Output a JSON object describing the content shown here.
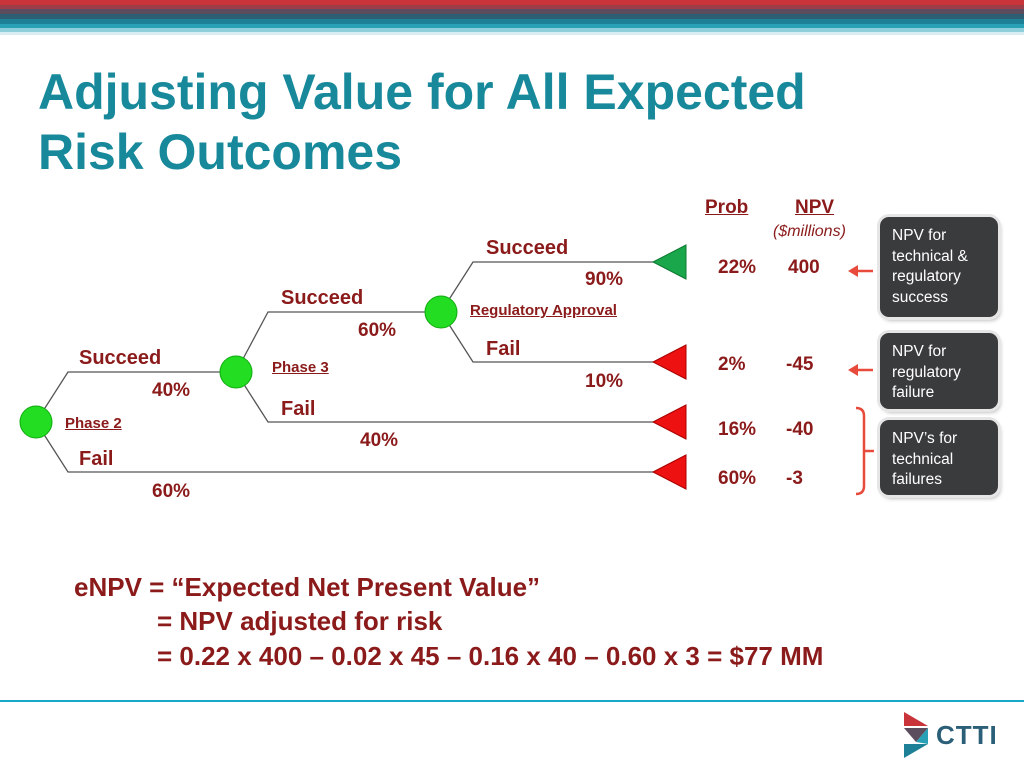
{
  "slide": {
    "title_line1": "Adjusting Value for All Expected",
    "title_line2": "Risk Outcomes"
  },
  "colors": {
    "title": "#17899b",
    "text": "#8b1a1a",
    "node": "#22dd22",
    "success_terminal": "#1aa64a",
    "failure_terminal": "#ee1111",
    "callout_bg": "#3a3b3d",
    "arrow": "#e84a3c"
  },
  "tree": {
    "phase2_label": "Phase 2",
    "phase3_label": "Phase 3",
    "regulatory_label": "Regulatory Approval",
    "p2_succeed": "Succeed",
    "p2_succeed_pct": "40%",
    "p2_fail": "Fail",
    "p2_fail_pct": "60%",
    "p3_succeed": "Succeed",
    "p3_succeed_pct": "60%",
    "p3_fail": "Fail",
    "p3_fail_pct": "40%",
    "reg_succeed": "Succeed",
    "reg_succeed_pct": "90%",
    "reg_fail": "Fail",
    "reg_fail_pct": "10%"
  },
  "table": {
    "prob_header": "Prob",
    "npv_header": "NPV",
    "npv_unit": "($millions)",
    "rows": [
      {
        "prob": "22%",
        "npv": "400"
      },
      {
        "prob": "2%",
        "npv": "-45"
      },
      {
        "prob": "16%",
        "npv": "-40"
      },
      {
        "prob": "60%",
        "npv": "-3"
      }
    ]
  },
  "callouts": [
    {
      "lines": [
        "NPV for",
        "technical &",
        "regulatory",
        "success"
      ]
    },
    {
      "lines": [
        "NPV for",
        "regulatory",
        "failure"
      ]
    },
    {
      "lines": [
        "NPV’s for",
        "technical",
        "failures"
      ]
    }
  ],
  "formula": {
    "line1": "eNPV = “Expected Net Present Value”",
    "line2": "= NPV adjusted for risk",
    "line3": "= 0.22 x 400 – 0.02 x 45 – 0.16 x 40 – 0.60 x 3 = $77 MM"
  },
  "logo": {
    "text": "CTTI"
  }
}
